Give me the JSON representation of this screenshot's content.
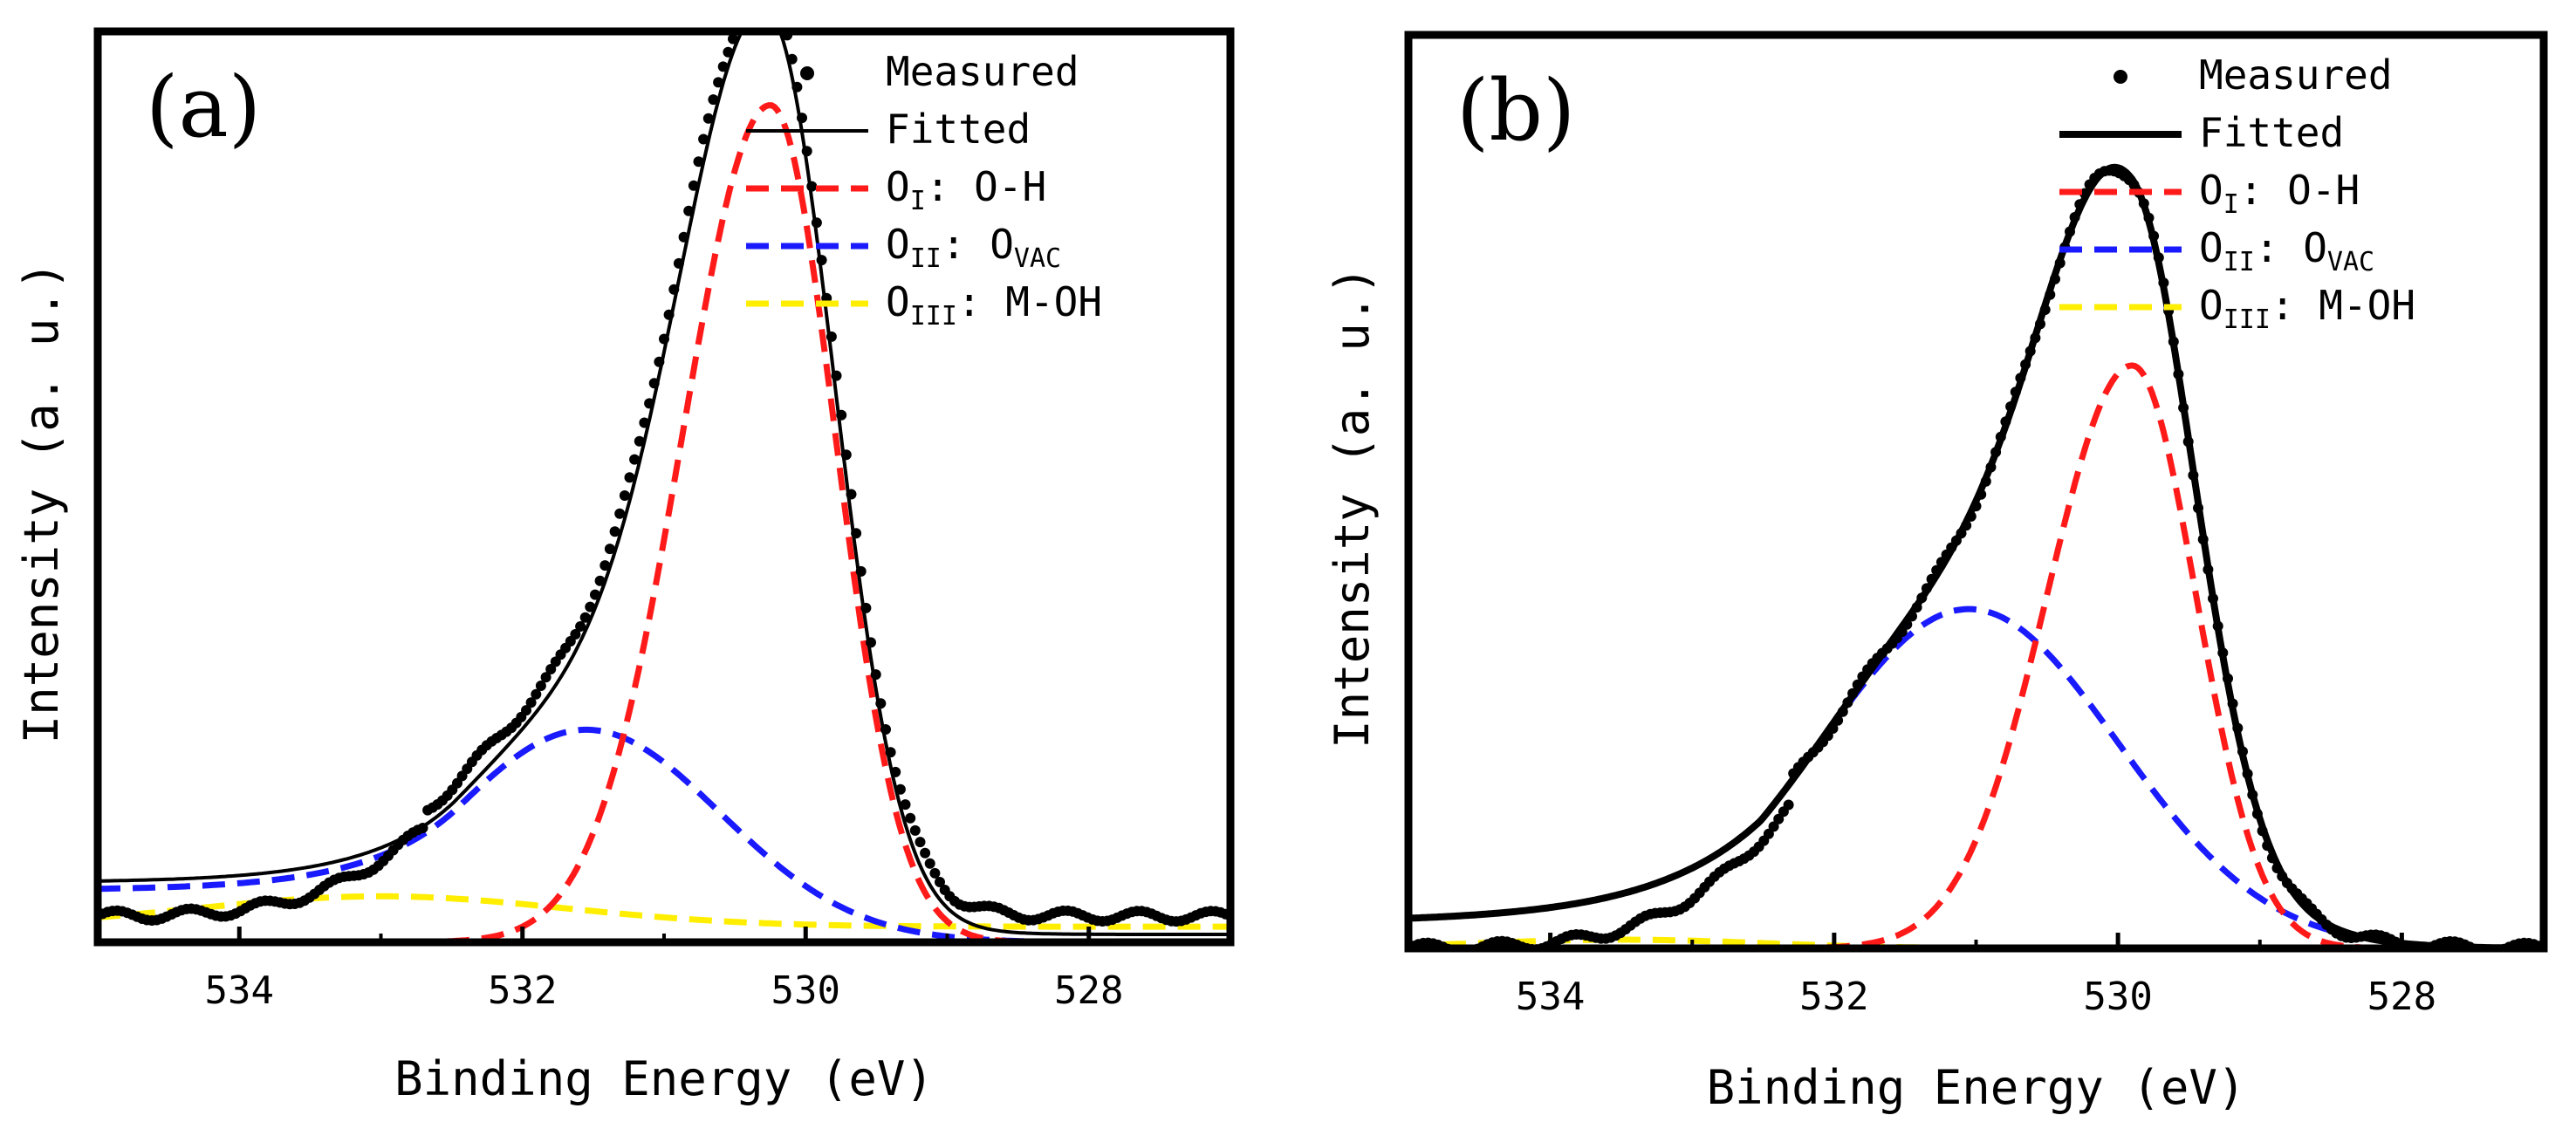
{
  "chart_data": [
    {
      "type": "line",
      "panel_label": "(a)",
      "xlabel": "Binding Energy (eV)",
      "ylabel": "Intensity (a. u.)",
      "xlim": [
        535,
        527
      ],
      "ylim": [
        0,
        1.05
      ],
      "xticks": [
        534,
        532,
        530,
        528
      ],
      "grid": false,
      "legend_position": "top-right",
      "peaks": {
        "o1": {
          "center": 530.25,
          "height": 0.965,
          "sigma_left": 0.46,
          "sigma_right": 0.62
        },
        "o2": {
          "center": 531.55,
          "height": 0.245,
          "sigma": 0.95,
          "tail_start": 532.4,
          "tail_rate": 1.6,
          "tail_level": 0.06
        },
        "o3": {
          "center": 533.0,
          "height": 0.035,
          "sigma": 1.3,
          "baseline": 0.018
        },
        "measured_baseline": 0.03
      },
      "series": [
        {
          "name": "Measured",
          "role": "measured",
          "style": "dots",
          "color": "#000000"
        },
        {
          "name": "Fitted",
          "role": "fitted",
          "style": "solid-thin",
          "color": "#000000"
        },
        {
          "name": "O_I: O-H",
          "role": "o1",
          "style": "dashed",
          "color": "#ff1a1a"
        },
        {
          "name": "O_II: O_VAC",
          "role": "o2",
          "style": "dashed",
          "color": "#1a1aff"
        },
        {
          "name": "O_III: M-OH",
          "role": "o3",
          "style": "dashed",
          "color": "#ffee00"
        }
      ]
    },
    {
      "type": "line",
      "panel_label": "(b)",
      "xlabel": "Binding Energy (eV)",
      "ylabel": "Intensity (a. u.)",
      "xlim": [
        535,
        527
      ],
      "ylim": [
        0,
        1.05
      ],
      "xticks": [
        534,
        532,
        530,
        528
      ],
      "grid": false,
      "legend_position": "top-right",
      "peaks": {
        "o1": {
          "center": 529.9,
          "height": 0.67,
          "sigma_left": 0.45,
          "sigma_right": 0.6
        },
        "o2": {
          "center": 531.05,
          "height": 0.39,
          "sigma": 1.05,
          "tail_start": 532.0,
          "tail_rate": 1.3,
          "tail_level": 0.03
        },
        "o3": {
          "center": 533.5,
          "height": 0.01,
          "sigma": 1.0,
          "baseline": 0.0
        },
        "measured_baseline": 0.0
      },
      "series": [
        {
          "name": "Measured",
          "role": "measured",
          "style": "dots",
          "color": "#000000"
        },
        {
          "name": "Fitted",
          "role": "fitted",
          "style": "solid-thick",
          "color": "#000000"
        },
        {
          "name": "O_I: O-H",
          "role": "o1",
          "style": "dashed",
          "color": "#ff1a1a"
        },
        {
          "name": "O_II: O_VAC",
          "role": "o2",
          "style": "dashed",
          "color": "#1a1aff"
        },
        {
          "name": "O_III: M-OH",
          "role": "o3",
          "style": "dashed",
          "color": "#ffee00"
        }
      ]
    }
  ],
  "legend": {
    "measured": "Measured",
    "fitted": "Fitted",
    "o1_main": "O",
    "o1_sub": "I",
    "o1_tail": ": O-H",
    "o2_main": "O",
    "o2_sub": "II",
    "o2_colon": ":  O",
    "o2_sub2": "VAC",
    "o3_main": "O",
    "o3_sub": "III",
    "o3_tail": ": M-OH"
  },
  "colors": {
    "frame": "#000000",
    "background": "#ffffff"
  }
}
